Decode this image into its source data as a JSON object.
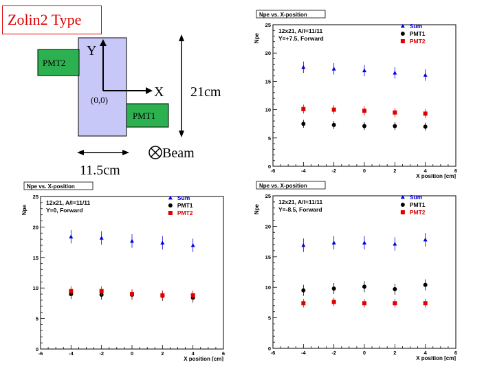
{
  "slide": {
    "title": "Zolin2 Type"
  },
  "diagram": {
    "pmt2_label": "PMT2",
    "pmt1_label": "PMT1",
    "y_axis_label": "Y",
    "x_axis_label": "X",
    "origin_label": "(0,0)",
    "height_label": "21cm",
    "width_label": "11.5cm",
    "beam_label": "Beam",
    "colors": {
      "scintillator": "#c8c8f8",
      "pmt": "#2db050"
    }
  },
  "chart_data": [
    {
      "type": "scatter",
      "title": "Npe vs. X-position",
      "info_lines": [
        "12x21, A/l=11/11",
        "Y=+7.5, Forward"
      ],
      "xlabel": "X position [cm]",
      "ylabel": "Npe",
      "xlim": [
        -6,
        6
      ],
      "ylim": [
        0,
        25
      ],
      "xticks": [
        -6,
        -4,
        -2,
        0,
        2,
        4,
        6
      ],
      "yticks": [
        0,
        5,
        10,
        15,
        20,
        25
      ],
      "legend": "top-right",
      "x": [
        -4,
        -2,
        0,
        2,
        4
      ],
      "series": [
        {
          "name": "Sum",
          "marker": "triangle",
          "color": "#0000e0",
          "values": [
            17.5,
            17.2,
            16.9,
            16.5,
            16.1
          ],
          "errors": [
            1.0,
            1.0,
            1.0,
            1.0,
            1.0
          ]
        },
        {
          "name": "PMT1",
          "marker": "circle",
          "color": "#000000",
          "values": [
            7.5,
            7.3,
            7.1,
            7.1,
            7.0
          ],
          "errors": [
            0.7,
            0.7,
            0.7,
            0.7,
            0.7
          ]
        },
        {
          "name": "PMT2",
          "marker": "square",
          "color": "#e00000",
          "values": [
            10.1,
            10.0,
            9.8,
            9.5,
            9.3
          ],
          "errors": [
            0.8,
            0.8,
            0.8,
            0.8,
            0.8
          ]
        }
      ]
    },
    {
      "type": "scatter",
      "title": "Npe vs. X-position",
      "info_lines": [
        "12x21, A/l=11/11",
        "Y=0, Forward"
      ],
      "xlabel": "X position [cm]",
      "ylabel": "Npe",
      "xlim": [
        -6,
        6
      ],
      "ylim": [
        0,
        25
      ],
      "xticks": [
        -6,
        -4,
        -2,
        0,
        2,
        4,
        6
      ],
      "yticks": [
        0,
        5,
        10,
        15,
        20,
        25
      ],
      "legend": "top-right",
      "x": [
        -4,
        -2,
        0,
        2,
        4
      ],
      "series": [
        {
          "name": "Sum",
          "marker": "triangle",
          "color": "#0000e0",
          "values": [
            18.4,
            18.2,
            17.7,
            17.4,
            17.0
          ],
          "errors": [
            1.1,
            1.1,
            1.1,
            1.1,
            1.1
          ]
        },
        {
          "name": "PMT1",
          "marker": "circle",
          "color": "#000000",
          "values": [
            9.0,
            8.9,
            8.9,
            8.7,
            8.4
          ],
          "errors": [
            0.8,
            0.8,
            0.8,
            0.8,
            0.8
          ]
        },
        {
          "name": "PMT2",
          "marker": "square",
          "color": "#e00000",
          "values": [
            9.5,
            9.5,
            9.0,
            8.8,
            8.8
          ],
          "errors": [
            0.8,
            0.8,
            0.8,
            0.8,
            0.8
          ]
        }
      ]
    },
    {
      "type": "scatter",
      "title": "Npe vs. X-position",
      "info_lines": [
        "12x21, A/l=11/11",
        "Y=-8.5, Forward"
      ],
      "xlabel": "X position [cm]",
      "ylabel": "Npe",
      "xlim": [
        -6,
        6
      ],
      "ylim": [
        0,
        25
      ],
      "xticks": [
        -6,
        -4,
        -2,
        0,
        2,
        4,
        6
      ],
      "yticks": [
        0,
        5,
        10,
        15,
        20,
        25
      ],
      "legend": "top-right",
      "x": [
        -4,
        -2,
        0,
        2,
        4
      ],
      "series": [
        {
          "name": "Sum",
          "marker": "triangle",
          "color": "#0000e0",
          "values": [
            16.9,
            17.3,
            17.3,
            17.1,
            17.8
          ],
          "errors": [
            1.1,
            1.1,
            1.1,
            1.1,
            1.1
          ]
        },
        {
          "name": "PMT1",
          "marker": "circle",
          "color": "#000000",
          "values": [
            9.5,
            9.8,
            10.1,
            9.7,
            10.4
          ],
          "errors": [
            0.9,
            0.9,
            0.9,
            0.9,
            0.9
          ]
        },
        {
          "name": "PMT2",
          "marker": "square",
          "color": "#e00000",
          "values": [
            7.4,
            7.6,
            7.4,
            7.4,
            7.4
          ],
          "errors": [
            0.7,
            0.7,
            0.7,
            0.7,
            0.7
          ]
        }
      ]
    }
  ]
}
